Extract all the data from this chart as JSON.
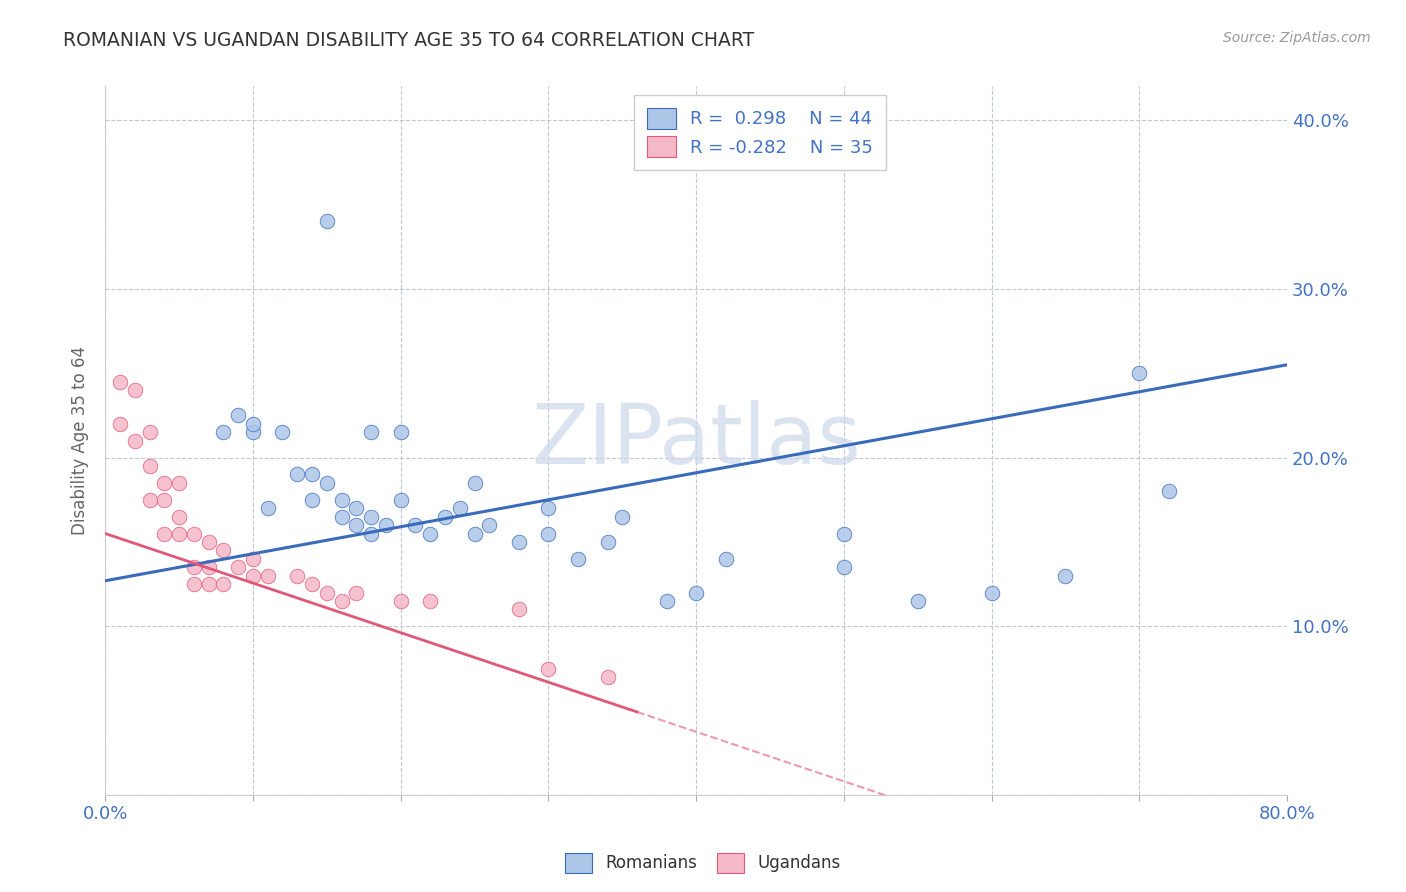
{
  "title": "ROMANIAN VS UGANDAN DISABILITY AGE 35 TO 64 CORRELATION CHART",
  "source": "Source: ZipAtlas.com",
  "ylabel": "Disability Age 35 to 64",
  "xlim": [
    0.0,
    0.8
  ],
  "ylim": [
    0.0,
    0.42
  ],
  "xtick_positions": [
    0.0,
    0.1,
    0.2,
    0.3,
    0.4,
    0.5,
    0.6,
    0.7,
    0.8
  ],
  "ytick_positions": [
    0.0,
    0.1,
    0.2,
    0.3,
    0.4
  ],
  "color_romanian": "#adc6e8",
  "color_ugandan": "#f5b8c8",
  "line_color_romanian": "#3a6bbb",
  "line_color_ugandan": "#e05878",
  "watermark_color": "#ccd8ea",
  "background_color": "#ffffff",
  "romanian_x": [
    0.08,
    0.09,
    0.1,
    0.1,
    0.11,
    0.12,
    0.13,
    0.14,
    0.14,
    0.15,
    0.16,
    0.16,
    0.17,
    0.17,
    0.18,
    0.18,
    0.19,
    0.2,
    0.21,
    0.22,
    0.23,
    0.24,
    0.25,
    0.26,
    0.28,
    0.3,
    0.32,
    0.34,
    0.38,
    0.4,
    0.42,
    0.5,
    0.55,
    0.6,
    0.65,
    0.7,
    0.72,
    0.15,
    0.18,
    0.2,
    0.25,
    0.3,
    0.35,
    0.5
  ],
  "romanian_y": [
    0.215,
    0.225,
    0.215,
    0.22,
    0.17,
    0.215,
    0.19,
    0.19,
    0.175,
    0.185,
    0.175,
    0.165,
    0.17,
    0.16,
    0.165,
    0.155,
    0.16,
    0.175,
    0.16,
    0.155,
    0.165,
    0.17,
    0.155,
    0.16,
    0.15,
    0.155,
    0.14,
    0.15,
    0.115,
    0.12,
    0.14,
    0.135,
    0.115,
    0.12,
    0.13,
    0.25,
    0.18,
    0.34,
    0.215,
    0.215,
    0.185,
    0.17,
    0.165,
    0.155
  ],
  "ugandan_x": [
    0.01,
    0.01,
    0.02,
    0.02,
    0.03,
    0.03,
    0.03,
    0.04,
    0.04,
    0.04,
    0.05,
    0.05,
    0.05,
    0.06,
    0.06,
    0.06,
    0.07,
    0.07,
    0.07,
    0.08,
    0.08,
    0.09,
    0.1,
    0.1,
    0.11,
    0.13,
    0.14,
    0.15,
    0.16,
    0.17,
    0.2,
    0.22,
    0.28,
    0.3,
    0.34
  ],
  "ugandan_y": [
    0.245,
    0.22,
    0.24,
    0.21,
    0.215,
    0.195,
    0.175,
    0.185,
    0.175,
    0.155,
    0.185,
    0.165,
    0.155,
    0.155,
    0.135,
    0.125,
    0.15,
    0.135,
    0.125,
    0.145,
    0.125,
    0.135,
    0.14,
    0.13,
    0.13,
    0.13,
    0.125,
    0.12,
    0.115,
    0.12,
    0.115,
    0.115,
    0.11,
    0.075,
    0.07
  ]
}
